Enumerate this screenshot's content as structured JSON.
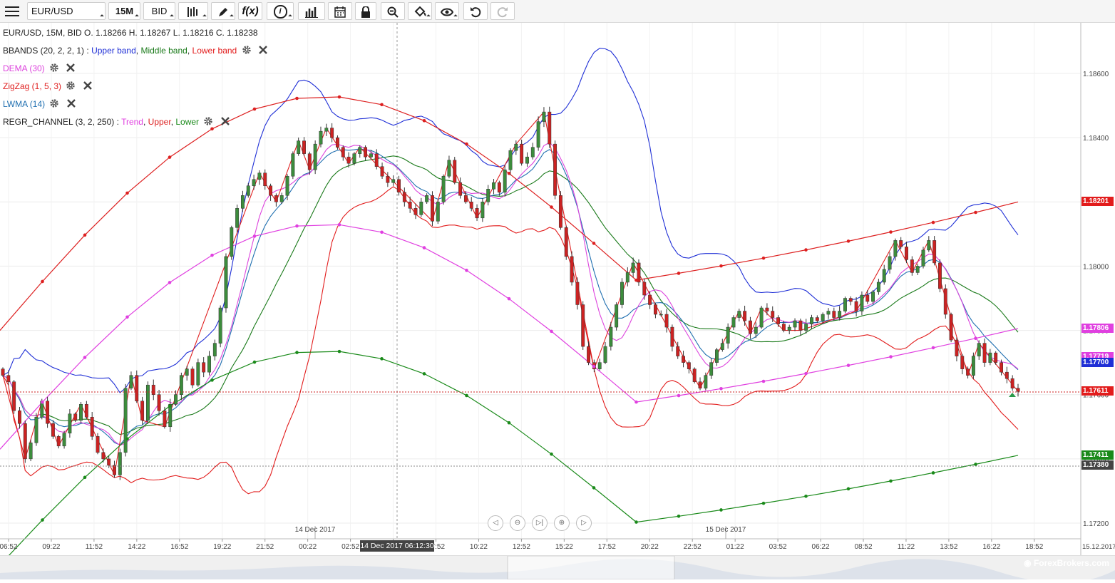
{
  "toolbar": {
    "symbol": "EUR/USD",
    "timeframe": "15M",
    "price_type": "BID",
    "fx_label": "f(x)",
    "info_label": "i"
  },
  "legend": {
    "ohlc": "EUR/USD, 15M, BID   O. 1.18266 H. 1.18267 L. 1.18216 C. 1.18238",
    "bbands": {
      "name": "BBANDS (20, 2, 2, 1)",
      "sep": " : ",
      "upper": "Upper band",
      "middle": "Middle band",
      "lower": "Lower band"
    },
    "dema": "DEMA (30)",
    "zigzag": "ZigZag (1, 5, 3)",
    "lwma": "LWMA (14)",
    "regr": {
      "name": "REGR_CHANNEL (3, 2, 250)",
      "sep": " : ",
      "trend": "Trend",
      "upper": "Upper",
      "lower": "Lower"
    }
  },
  "colors": {
    "bullish": "#3c8c3c",
    "bearish": "#cc2222",
    "upper_band": "#1f2fd6",
    "middle_band": "#1a7a1a",
    "lower_band": "#e21c1c",
    "dema": "#dd44dd",
    "zigzag": "#e02020",
    "lwma": "#1f6fb0",
    "regr_trend": "#e040e0",
    "regr_upper": "#dd2020",
    "regr_lower": "#1a8a1a"
  },
  "chart_data": {
    "type": "candlestick",
    "ylim": [
      1.1715,
      1.187
    ],
    "y_ticks": [
      "1.18600",
      "1.18400",
      "1.18200",
      "1.18000",
      "1.17800",
      "1.17600",
      "1.17400",
      "1.17200"
    ],
    "x_ticks": [
      "06:52",
      "09:22",
      "11:52",
      "14:22",
      "16:52",
      "19:22",
      "21:52",
      "00:22",
      "02:52",
      "05:22",
      "07:52",
      "10:22",
      "12:52",
      "15:22",
      "17:52",
      "20:22",
      "22:52",
      "01:22",
      "03:52",
      "06:22",
      "08:52",
      "11:22",
      "13:52",
      "16:22",
      "18:52"
    ],
    "date_labels": [
      "14 Dec 2017",
      "15 Dec 2017"
    ],
    "crosshair_label": "14 Dec 2017 06:12:30",
    "right_date": "15.12.2017",
    "price_labels": [
      {
        "text": "1.18201",
        "value": 1.18201,
        "color": "#e21c1c"
      },
      {
        "text": "1.17806",
        "value": 1.17806,
        "color": "#e040e0"
      },
      {
        "text": "1.17719",
        "value": 1.17719,
        "color": "#e040e0"
      },
      {
        "text": "1.17700",
        "value": 1.177,
        "color": "#1f2fd6"
      },
      {
        "text": "1.17611",
        "value": 1.17611,
        "color": "#e21c1c"
      },
      {
        "text": "1.17411",
        "value": 1.17411,
        "color": "#1a8a1a"
      },
      {
        "text": "1.17380",
        "value": 1.1738,
        "color": "#444444"
      }
    ],
    "close_path": [
      1.1766,
      1.1764,
      1.1755,
      1.1751,
      1.174,
      1.1745,
      1.1753,
      1.1758,
      1.1751,
      1.1747,
      1.1744,
      1.1748,
      1.1754,
      1.1752,
      1.1757,
      1.1753,
      1.1747,
      1.1742,
      1.174,
      1.1738,
      1.1735,
      1.1742,
      1.1762,
      1.1766,
      1.1758,
      1.1752,
      1.1763,
      1.176,
      1.1755,
      1.175,
      1.1757,
      1.176,
      1.1766,
      1.1768,
      1.1763,
      1.177,
      1.1767,
      1.1772,
      1.1776,
      1.1787,
      1.1803,
      1.1812,
      1.1818,
      1.1822,
      1.1825,
      1.1827,
      1.1829,
      1.1825,
      1.1822,
      1.182,
      1.1822,
      1.1828,
      1.1835,
      1.1839,
      1.1835,
      1.183,
      1.1838,
      1.1842,
      1.1843,
      1.184,
      1.1837,
      1.1834,
      1.1832,
      1.1835,
      1.1837,
      1.1834,
      1.1835,
      1.1831,
      1.1828,
      1.1826,
      1.1827,
      1.1823,
      1.182,
      1.1818,
      1.1816,
      1.182,
      1.1822,
      1.1814,
      1.182,
      1.1828,
      1.1833,
      1.1826,
      1.1822,
      1.182,
      1.1818,
      1.1815,
      1.182,
      1.1824,
      1.1826,
      1.1823,
      1.183,
      1.1836,
      1.1838,
      1.1832,
      1.1834,
      1.1837,
      1.1845,
      1.1848,
      1.1838,
      1.1822,
      1.1812,
      1.1803,
      1.1795,
      1.1788,
      1.1775,
      1.177,
      1.1768,
      1.177,
      1.1775,
      1.1781,
      1.1788,
      1.1795,
      1.1798,
      1.1801,
      1.1795,
      1.1791,
      1.1788,
      1.1785,
      1.1785,
      1.1781,
      1.1775,
      1.1772,
      1.177,
      1.1768,
      1.1764,
      1.1762,
      1.1766,
      1.177,
      1.1774,
      1.1776,
      1.1781,
      1.1784,
      1.1786,
      1.1783,
      1.1779,
      1.1781,
      1.1787,
      1.1786,
      1.1784,
      1.1782,
      1.178,
      1.1781,
      1.1783,
      1.178,
      1.1782,
      1.1784,
      1.1783,
      1.1785,
      1.1786,
      1.1784,
      1.1786,
      1.179,
      1.1789,
      1.1786,
      1.1791,
      1.1789,
      1.1792,
      1.1795,
      1.1799,
      1.1803,
      1.1808,
      1.1806,
      1.1802,
      1.1798,
      1.18,
      1.1805,
      1.1808,
      1.1801,
      1.1793,
      1.1785,
      1.1777,
      1.1772,
      1.1768,
      1.1766,
      1.1772,
      1.1776,
      1.177,
      1.1773,
      1.177,
      1.1767,
      1.1765,
      1.1762,
      1.1761
    ]
  }
}
